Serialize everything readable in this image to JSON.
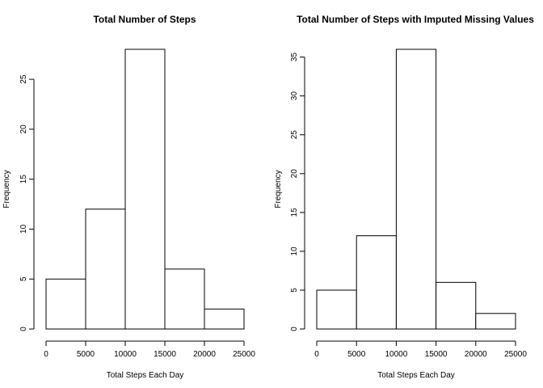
{
  "chart_data": [
    {
      "type": "bar",
      "title": "Total Number of Steps",
      "xlabel": "Total Steps Each Day",
      "ylabel": "Frequency",
      "bins": [
        [
          0,
          5000
        ],
        [
          5000,
          10000
        ],
        [
          10000,
          15000
        ],
        [
          15000,
          20000
        ],
        [
          20000,
          25000
        ]
      ],
      "values": [
        5,
        12,
        28,
        6,
        2
      ],
      "xlim": [
        0,
        25000
      ],
      "ylim": [
        0,
        28
      ],
      "xticks": [
        0,
        5000,
        10000,
        15000,
        20000,
        25000
      ],
      "yticks": [
        0,
        5,
        10,
        15,
        20,
        25
      ],
      "grid": false
    },
    {
      "type": "bar",
      "title": "Total Number of Steps with Imputed Missing Values",
      "xlabel": "Total Steps Each Day",
      "ylabel": "Frequency",
      "bins": [
        [
          0,
          5000
        ],
        [
          5000,
          10000
        ],
        [
          10000,
          15000
        ],
        [
          15000,
          20000
        ],
        [
          20000,
          25000
        ]
      ],
      "values": [
        5,
        12,
        36,
        6,
        2
      ],
      "xlim": [
        0,
        25000
      ],
      "ylim": [
        0,
        36
      ],
      "xticks": [
        0,
        5000,
        10000,
        15000,
        20000,
        25000
      ],
      "yticks": [
        0,
        5,
        10,
        15,
        20,
        25,
        30,
        35
      ],
      "grid": false
    }
  ]
}
